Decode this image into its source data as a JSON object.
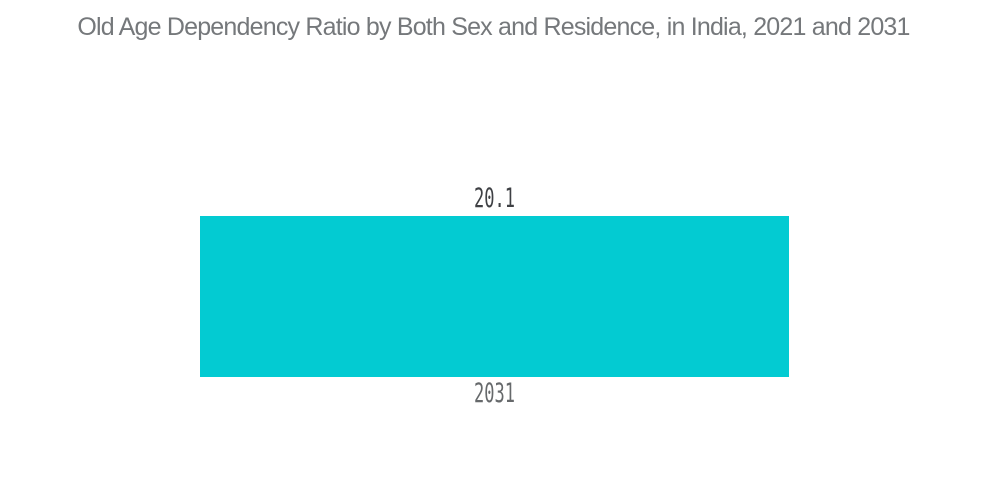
{
  "chart_data": {
    "type": "bar",
    "title": "Old Age Dependency Ratio by Both Sex and Residence, in India, 2021 and 2031",
    "categories": [
      "2031"
    ],
    "values": [
      20.1
    ],
    "data_labels": [
      "20.1"
    ],
    "xlabel": "",
    "ylabel": "",
    "legend": "none",
    "grid": false,
    "background": "#FFFFFF",
    "colors": {
      "bar": "#03CBD2",
      "title": "#75787B",
      "data_label": "#3E4044",
      "category_label": "#66696B"
    }
  }
}
